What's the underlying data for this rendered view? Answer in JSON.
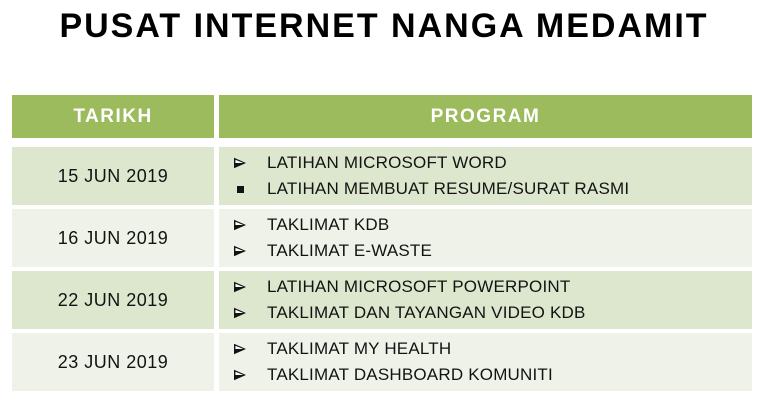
{
  "page": {
    "title": "PUSAT INTERNET NANGA MEDAMIT"
  },
  "table": {
    "headers": [
      "TARIKH",
      "PROGRAM"
    ],
    "rows": [
      {
        "date": "15 JUN 2019",
        "items": [
          {
            "bullet": "arrow",
            "text": "LATIHAN MICROSOFT WORD"
          },
          {
            "bullet": "square",
            "text": "LATIHAN MEMBUAT RESUME/SURAT RASMI"
          }
        ]
      },
      {
        "date": "16 JUN 2019",
        "items": [
          {
            "bullet": "arrow",
            "text": "TAKLIMAT KDB"
          },
          {
            "bullet": "arrow",
            "text": "TAKLIMAT E-WASTE"
          }
        ]
      },
      {
        "date": "22 JUN 2019",
        "items": [
          {
            "bullet": "arrow",
            "text": "LATIHAN MICROSOFT POWERPOINT"
          },
          {
            "bullet": "arrow",
            "text": "TAKLIMAT DAN TAYANGAN VIDEO KDB"
          }
        ]
      },
      {
        "date": "23 JUN 2019",
        "items": [
          {
            "bullet": "arrow",
            "text": "TAKLIMAT MY HEALTH"
          },
          {
            "bullet": "arrow",
            "text": "TAKLIMAT DASHBOARD KOMUNITI"
          }
        ]
      }
    ],
    "icons": {
      "arrow_bullet": "➢",
      "square_bullet": "▪"
    },
    "colors": {
      "header_bg": "#9CBB5C",
      "header_text": "#FFFFFF",
      "row_band_green": "#DCE7CE",
      "row_band_light": "#EFF2E8",
      "text": "#131313"
    }
  }
}
